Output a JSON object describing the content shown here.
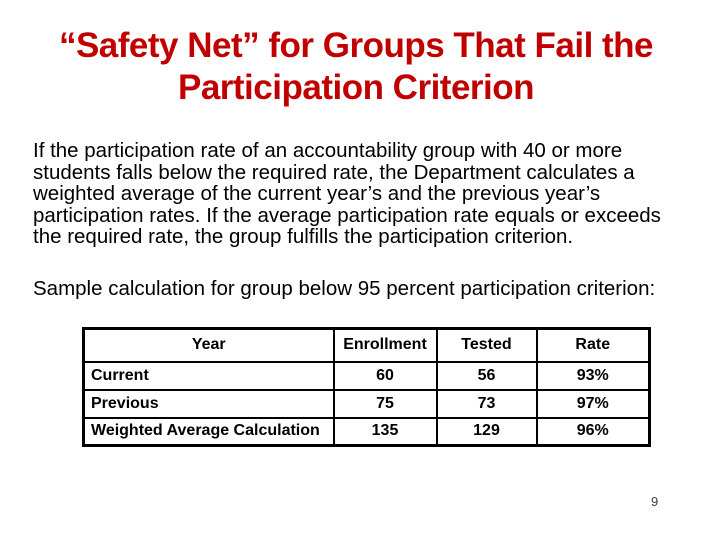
{
  "slide": {
    "background_color": "#ffffff",
    "title": {
      "color": "#c00000",
      "full_text": "“Safety Net” for Groups That Fail the Participation Criterion",
      "lines": [
        "“Safety Net” for Groups That Fail the",
        "Participation Criterion"
      ]
    },
    "paragraph": {
      "full_text": "If the participation rate of an accountability group with 40 or more students falls below the required rate, the Department calculates a weighted average of the current year’s and the previous year’s participation rates. If the average participation rate equals or exceeds the required rate, the group fulfills the participation criterion.",
      "lines": [
        "If the participation rate of an accountability group with 40 or more",
        "students falls below the required rate, the Department calculates a",
        "weighted average of the current year’s and the previous year’s",
        "participation rates. If the average participation rate equals or exceeds",
        "the required rate, the group fulfills the participation criterion."
      ]
    },
    "sample_line": "Sample calculation for group below 95 percent participation criterion:",
    "table": {
      "headers": [
        "Year",
        "Enrollment",
        "Tested",
        "Rate"
      ],
      "rows": [
        {
          "year": "Current",
          "enrollment": "60",
          "tested": "56",
          "rate": "93%"
        },
        {
          "year": "Previous",
          "enrollment": "75",
          "tested": "73",
          "rate": "97%"
        },
        {
          "year": "Weighted Average Calculation",
          "enrollment": "135",
          "tested": "129",
          "rate": "96%"
        }
      ]
    },
    "page_number": "9"
  }
}
